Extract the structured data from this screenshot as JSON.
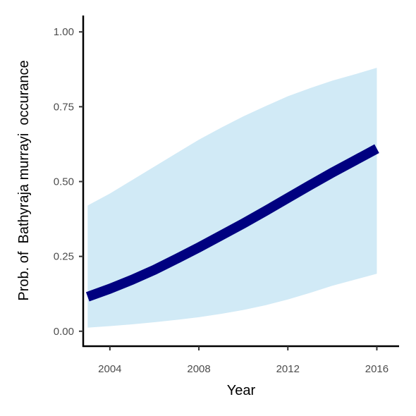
{
  "chart_data": {
    "type": "line",
    "title": "",
    "xlabel": "Year",
    "ylabel": "Prob. of  Bathyraja murrayi  occurance",
    "xlim": [
      2002.8,
      2017.0
    ],
    "ylim": [
      -0.05,
      1.05
    ],
    "x_ticks": [
      2004,
      2008,
      2012,
      2016
    ],
    "y_ticks": [
      0.0,
      0.25,
      0.5,
      0.75,
      1.0
    ],
    "y_tick_labels": [
      "0.00",
      "0.25",
      "0.50",
      "0.75",
      "1.00"
    ],
    "grid": false,
    "legend": "none",
    "series": [
      {
        "kind": "ribbon",
        "color": "#d1eaf6",
        "x": [
          2003,
          2004,
          2005,
          2006,
          2007,
          2008,
          2009,
          2010,
          2011,
          2012,
          2013,
          2014,
          2015,
          2016
        ],
        "lower": [
          0.012,
          0.017,
          0.023,
          0.03,
          0.038,
          0.047,
          0.058,
          0.071,
          0.087,
          0.106,
          0.128,
          0.152,
          0.172,
          0.192
        ],
        "upper": [
          0.42,
          0.46,
          0.505,
          0.55,
          0.595,
          0.64,
          0.68,
          0.718,
          0.752,
          0.785,
          0.812,
          0.837,
          0.858,
          0.88
        ]
      },
      {
        "kind": "line",
        "color": "#000080",
        "x": [
          2003,
          2004,
          2005,
          2006,
          2007,
          2008,
          2009,
          2010,
          2011,
          2012,
          2013,
          2014,
          2015,
          2016
        ],
        "values": [
          0.115,
          0.142,
          0.172,
          0.205,
          0.242,
          0.28,
          0.32,
          0.36,
          0.402,
          0.445,
          0.488,
          0.53,
          0.57,
          0.61
        ]
      }
    ]
  }
}
